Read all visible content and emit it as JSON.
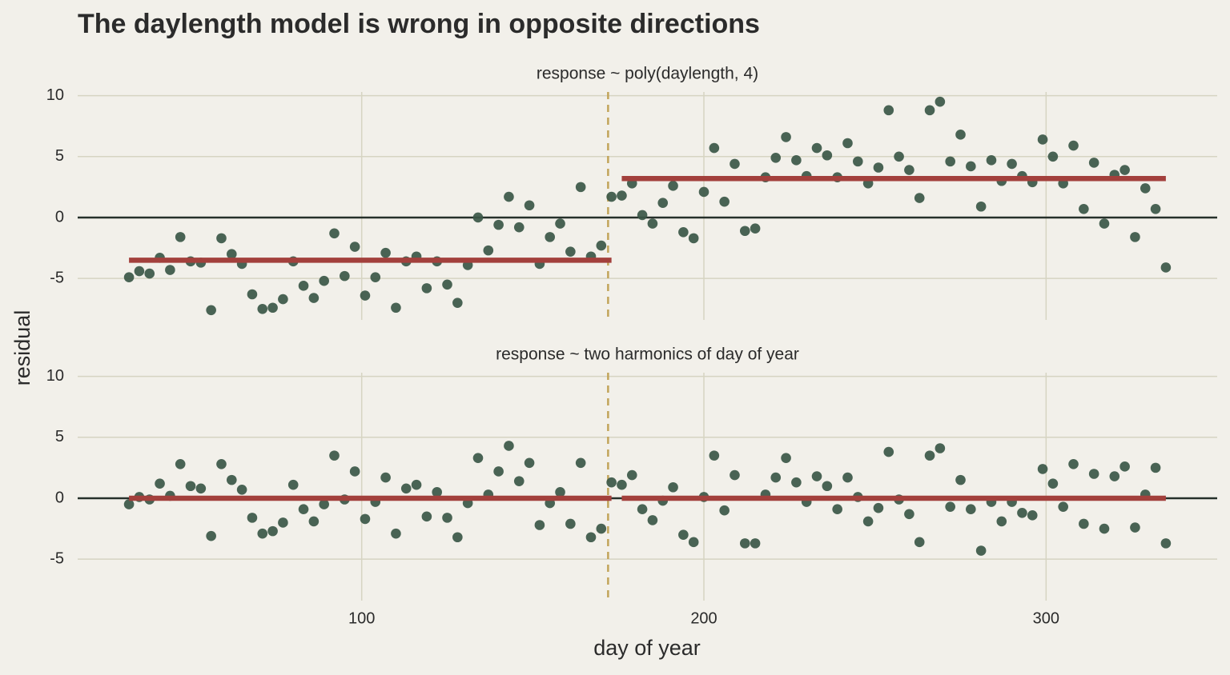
{
  "title": "The daylength model is wrong in opposite directions",
  "x_label": "day of year",
  "y_label": "residual",
  "chart_data": [
    {
      "type": "scatter",
      "title": "response ~ poly(daylength, 4)",
      "x": [
        32,
        35,
        38,
        41,
        44,
        47,
        50,
        53,
        56,
        59,
        62,
        65,
        68,
        71,
        74,
        77,
        80,
        83,
        86,
        89,
        92,
        95,
        98,
        101,
        104,
        107,
        110,
        113,
        116,
        119,
        122,
        125,
        128,
        131,
        134,
        137,
        140,
        143,
        146,
        149,
        152,
        155,
        158,
        161,
        164,
        167,
        170,
        173,
        176,
        179,
        182,
        185,
        188,
        191,
        194,
        197,
        200,
        203,
        206,
        209,
        212,
        215,
        218,
        221,
        224,
        227,
        230,
        233,
        236,
        239,
        242,
        245,
        248,
        251,
        254,
        257,
        260,
        263,
        266,
        269,
        272,
        275,
        278,
        281,
        284,
        287,
        290,
        293,
        296,
        299,
        302,
        305,
        308,
        311,
        314,
        317,
        320,
        323,
        326,
        329,
        332,
        335
      ],
      "values": [
        -4.9,
        -4.4,
        -4.6,
        -3.3,
        -4.3,
        -1.6,
        -3.6,
        -3.7,
        -7.6,
        -1.7,
        -3.0,
        -3.8,
        -6.3,
        -7.5,
        -7.4,
        -6.7,
        -3.6,
        -5.6,
        -6.6,
        -5.2,
        -1.3,
        -4.8,
        -2.4,
        -6.4,
        -4.9,
        -2.9,
        -7.4,
        -3.6,
        -3.2,
        -5.8,
        -3.6,
        -5.5,
        -7.0,
        -3.9,
        0,
        -2.7,
        -0.6,
        1.7,
        -0.8,
        1.0,
        -3.8,
        -1.6,
        -0.5,
        -2.8,
        2.5,
        -3.2,
        -2.3,
        1.7,
        1.8,
        2.8,
        0.2,
        -0.5,
        1.2,
        2.6,
        -1.2,
        -1.7,
        2.1,
        5.7,
        1.3,
        4.4,
        -1.1,
        -0.9,
        3.3,
        4.9,
        6.6,
        4.7,
        3.4,
        5.7,
        5.1,
        3.3,
        6.1,
        4.6,
        2.8,
        4.1,
        8.8,
        5.0,
        3.9,
        1.6,
        8.8,
        9.5,
        4.6,
        6.8,
        4.2,
        0.9,
        4.7,
        3.0,
        4.4,
        3.4,
        2.9,
        6.4,
        5.0,
        2.8,
        5.9,
        0.7,
        4.5,
        -0.5,
        3.5,
        3.9,
        -1.6,
        2.4,
        0.7,
        -4.1
      ],
      "color": "#3b5747",
      "segments": [
        {
          "x": [
            32,
            173
          ],
          "value": -3.5
        },
        {
          "x": [
            176,
            335
          ],
          "value": 3.2
        }
      ],
      "segment_color": "#a3403c",
      "vline": 172,
      "vline_color": "#c2a45a",
      "xlim": [
        17,
        350
      ],
      "xticks": [
        100,
        200,
        300
      ],
      "show_xticks": false,
      "ylim": [
        -8.4,
        10.3
      ],
      "yticks": [
        -5,
        0,
        5,
        10
      ],
      "grid": true,
      "zero_line": true
    },
    {
      "type": "scatter",
      "title": "response ~ two harmonics of day of year",
      "x": [
        32,
        35,
        38,
        41,
        44,
        47,
        50,
        53,
        56,
        59,
        62,
        65,
        68,
        71,
        74,
        77,
        80,
        83,
        86,
        89,
        92,
        95,
        98,
        101,
        104,
        107,
        110,
        113,
        116,
        119,
        122,
        125,
        128,
        131,
        134,
        137,
        140,
        143,
        146,
        149,
        152,
        155,
        158,
        161,
        164,
        167,
        170,
        173,
        176,
        179,
        182,
        185,
        188,
        191,
        194,
        197,
        200,
        203,
        206,
        209,
        212,
        215,
        218,
        221,
        224,
        227,
        230,
        233,
        236,
        239,
        242,
        245,
        248,
        251,
        254,
        257,
        260,
        263,
        266,
        269,
        272,
        275,
        278,
        281,
        284,
        287,
        290,
        293,
        296,
        299,
        302,
        305,
        308,
        311,
        314,
        317,
        320,
        323,
        326,
        329,
        332,
        335
      ],
      "values": [
        -0.5,
        0.1,
        -0.1,
        1.2,
        0.2,
        2.8,
        1.0,
        0.8,
        -3.1,
        2.8,
        1.5,
        0.7,
        -1.6,
        -2.9,
        -2.7,
        -2.0,
        1.1,
        -0.9,
        -1.9,
        -0.5,
        3.5,
        -0.1,
        2.2,
        -1.7,
        -0.3,
        1.7,
        -2.9,
        0.8,
        1.1,
        -1.5,
        0.5,
        -1.6,
        -3.2,
        -0.4,
        3.3,
        0.3,
        2.2,
        4.3,
        1.4,
        2.9,
        -2.2,
        -0.4,
        0.5,
        -2.1,
        2.9,
        -3.2,
        -2.5,
        1.3,
        1.1,
        1.9,
        -0.9,
        -1.8,
        -0.2,
        0.9,
        -3.0,
        -3.6,
        0.1,
        3.5,
        -1.0,
        1.9,
        -3.7,
        -3.7,
        0.3,
        1.7,
        3.3,
        1.3,
        -0.3,
        1.8,
        1.0,
        -0.9,
        1.7,
        0.1,
        -1.9,
        -0.8,
        3.8,
        -0.1,
        -1.3,
        -3.6,
        3.5,
        4.1,
        -0.7,
        1.5,
        -0.9,
        -4.3,
        -0.3,
        -1.9,
        -0.3,
        -1.2,
        -1.4,
        2.4,
        1.2,
        -0.7,
        2.8,
        -2.1,
        2.0,
        -2.5,
        1.8,
        2.6,
        -2.4,
        0.3,
        2.5,
        -3.7
      ],
      "color": "#3b5747",
      "segments": [
        {
          "x": [
            32,
            173
          ],
          "value": 0
        },
        {
          "x": [
            176,
            335
          ],
          "value": 0
        }
      ],
      "segment_color": "#a3403c",
      "vline": 172,
      "vline_color": "#c2a45a",
      "xlim": [
        17,
        350
      ],
      "xticks": [
        100,
        200,
        300
      ],
      "show_xticks": true,
      "ylim": [
        -8.4,
        10.3
      ],
      "yticks": [
        -5,
        0,
        5,
        10
      ],
      "grid": true,
      "zero_line": true
    }
  ]
}
